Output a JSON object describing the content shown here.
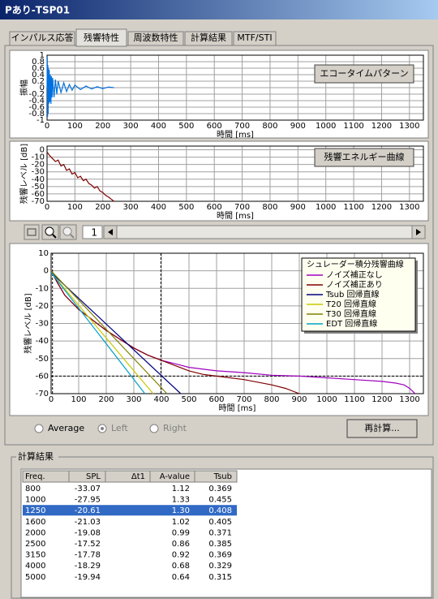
{
  "window": {
    "title": "Pあり-TSP01"
  },
  "tabs": {
    "items": [
      "インパルス応答",
      "残響特性",
      "周波数特性",
      "計算結果",
      "MTF/STI"
    ],
    "active": 1
  },
  "chart_data": [
    {
      "type": "line",
      "button": "エコータイムパターン",
      "xlabel": "時間 [ms]",
      "ylabel": "振幅",
      "xlim": [
        0,
        1350
      ],
      "ylim": [
        -1,
        1
      ],
      "xticks": [
        0,
        100,
        200,
        300,
        400,
        500,
        600,
        700,
        800,
        900,
        1000,
        1100,
        1200,
        1300
      ],
      "yticks": [
        1,
        0.8,
        0.6,
        0.4,
        0.2,
        0,
        -0.2,
        -0.4,
        -0.6,
        -0.8,
        -1
      ],
      "grid": true,
      "series": [
        {
          "color": "#0070e0",
          "x": [
            0,
            1,
            2,
            3,
            4,
            5,
            6,
            8,
            10,
            12,
            14,
            16,
            18,
            20,
            25,
            30,
            35,
            40,
            50,
            60,
            70,
            80,
            90,
            100,
            120,
            140,
            160,
            180,
            200,
            220,
            240
          ],
          "values": [
            0,
            0.95,
            -0.9,
            0.7,
            -0.8,
            0.6,
            -0.5,
            0.55,
            -0.45,
            0.4,
            -0.5,
            0.35,
            -0.3,
            0.3,
            -0.3,
            0.25,
            -0.2,
            0.2,
            -0.15,
            0.15,
            -0.12,
            0.1,
            -0.08,
            0.08,
            -0.06,
            0.05,
            -0.04,
            0.03,
            -0.03,
            0.02,
            0
          ]
        }
      ]
    },
    {
      "type": "line",
      "button": "残響エネルギー曲線",
      "xlabel": "時間 [ms]",
      "ylabel": "残響レベル [dB]",
      "xlim": [
        0,
        1350
      ],
      "ylim": [
        -70,
        5
      ],
      "xticks": [
        0,
        100,
        200,
        300,
        400,
        500,
        600,
        700,
        800,
        900,
        1000,
        1100,
        1200,
        1300
      ],
      "yticks": [
        0,
        -10,
        -20,
        -30,
        -40,
        -50,
        -60,
        -70
      ],
      "grid": true,
      "series": [
        {
          "color": "#800000",
          "x": [
            0,
            10,
            20,
            30,
            40,
            50,
            60,
            70,
            80,
            90,
            100,
            110,
            120,
            130,
            140,
            150,
            160,
            170,
            180,
            190,
            200,
            210,
            220,
            230,
            240
          ],
          "values": [
            -3,
            -8,
            -12,
            -16,
            -14,
            -22,
            -20,
            -28,
            -26,
            -33,
            -31,
            -38,
            -36,
            -42,
            -40,
            -46,
            -48,
            -52,
            -50,
            -56,
            -58,
            -62,
            -64,
            -67,
            -70
          ]
        }
      ]
    },
    {
      "type": "line",
      "legend_title": "シュレーダー積分残響曲線",
      "xlabel": "時間 [ms]",
      "ylabel": "残響レベル [dB]",
      "xlim": [
        0,
        1350
      ],
      "ylim": [
        -70,
        10
      ],
      "xticks": [
        0,
        100,
        200,
        300,
        400,
        500,
        600,
        700,
        800,
        900,
        1000,
        1100,
        1200,
        1300
      ],
      "yticks": [
        10,
        0,
        -10,
        -20,
        -30,
        -40,
        -50,
        -60,
        -70
      ],
      "grid": true,
      "vlines": [
        5,
        398
      ],
      "hlines": [
        -60
      ],
      "series": [
        {
          "name": "ノイズ補正なし",
          "color": "#a000c0",
          "x": [
            0,
            20,
            50,
            100,
            150,
            200,
            250,
            300,
            350,
            400,
            450,
            500,
            600,
            700,
            800,
            900,
            1000,
            1100,
            1200,
            1250,
            1280,
            1300,
            1320
          ],
          "values": [
            0,
            -6,
            -14,
            -22,
            -28,
            -34,
            -39,
            -44,
            -48,
            -51,
            -53,
            -55,
            -57,
            -58,
            -59.5,
            -60,
            -61,
            -62,
            -63,
            -64,
            -65,
            -67,
            -70
          ]
        },
        {
          "name": "ノイズ補正あり",
          "color": "#800000",
          "x": [
            0,
            20,
            50,
            100,
            150,
            200,
            250,
            300,
            350,
            400,
            450,
            500,
            550,
            600,
            700,
            800,
            850,
            900
          ],
          "values": [
            0,
            -6,
            -14,
            -22,
            -28,
            -34,
            -39,
            -44,
            -48,
            -51,
            -54,
            -57,
            -59,
            -60,
            -62,
            -65,
            -67,
            -70
          ]
        },
        {
          "name": "Tsub 回帰直線",
          "color": "#000080",
          "x": [
            0,
            470
          ],
          "values": [
            -1,
            -70
          ]
        },
        {
          "name": "T20 回帰直線",
          "color": "#c8c800",
          "x": [
            0,
            370
          ],
          "values": [
            -1,
            -70
          ]
        },
        {
          "name": "T30 回帰直線",
          "color": "#808000",
          "x": [
            0,
            420
          ],
          "values": [
            0,
            -70
          ]
        },
        {
          "name": "EDT 回帰直線",
          "color": "#00a0c8",
          "x": [
            0,
            340
          ],
          "values": [
            -1,
            -70
          ]
        }
      ]
    }
  ],
  "toolbar": {
    "page": "1"
  },
  "channel": {
    "options": [
      "Average",
      "Left",
      "Right"
    ],
    "selected": 1
  },
  "recalc_button": "再計算...",
  "results": {
    "title": "計算結果",
    "columns": [
      "Freq.",
      "SPL",
      "Δt1",
      "A-value",
      "Tsub"
    ],
    "selected_row": 2,
    "rows": [
      {
        "freq": "800",
        "spl": "-33.07",
        "a_value": "1.12",
        "tsub": "0.369"
      },
      {
        "freq": "1000",
        "spl": "-27.95",
        "a_value": "1.33",
        "tsub": "0.455"
      },
      {
        "freq": "1250",
        "spl": "-20.61",
        "a_value": "1.30",
        "tsub": "0.408"
      },
      {
        "freq": "1600",
        "spl": "-21.03",
        "a_value": "1.02",
        "tsub": "0.405"
      },
      {
        "freq": "2000",
        "spl": "-19.08",
        "a_value": "0.99",
        "tsub": "0.371"
      },
      {
        "freq": "2500",
        "spl": "-17.52",
        "a_value": "0.86",
        "tsub": "0.385"
      },
      {
        "freq": "3150",
        "spl": "-17.78",
        "a_value": "0.92",
        "tsub": "0.369"
      },
      {
        "freq": "4000",
        "spl": "-18.29",
        "a_value": "0.68",
        "tsub": "0.329"
      },
      {
        "freq": "5000",
        "spl": "-19.94",
        "a_value": "0.64",
        "tsub": "0.315"
      }
    ]
  }
}
